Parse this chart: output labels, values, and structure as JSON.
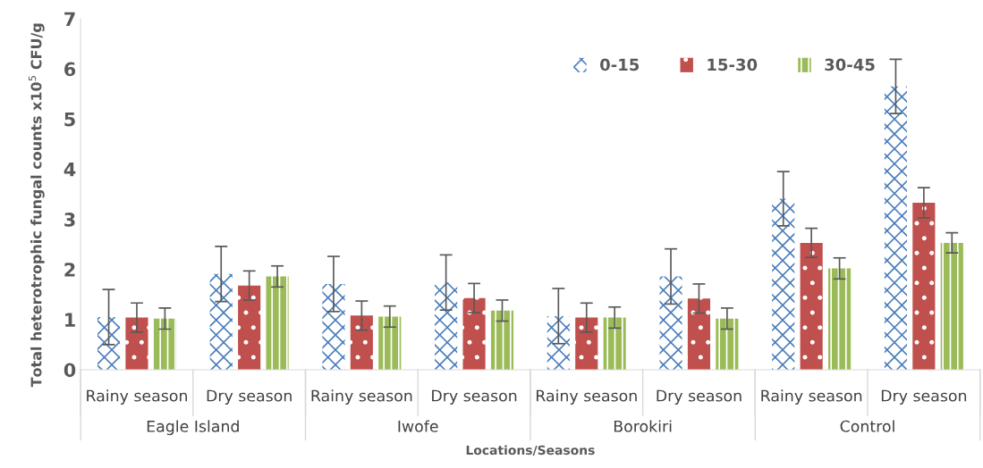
{
  "chart_data": {
    "type": "bar",
    "ylabel": "Total heterotrophic fungal counts x10$^{5}$ CFU/g",
    "xlabel": "Locations/Seasons",
    "categories": [
      "Rainy season",
      "Dry season",
      "Rainy season",
      "Dry season",
      "Rainy season",
      "Dry season",
      "Rainy season",
      "Dry season"
    ],
    "annotations": [
      "Eagle Island",
      "Iwofe",
      "Borokiri",
      "Control"
    ],
    "series": [
      {
        "name": "0-15",
        "color": "#4a7ebb",
        "values": [
          1.05,
          1.91,
          1.71,
          1.74,
          1.07,
          1.86,
          3.41,
          5.65
        ],
        "errors": [
          0.55,
          0.55,
          0.55,
          0.55,
          0.55,
          0.55,
          0.54,
          0.54
        ]
      },
      {
        "name": "15-30",
        "color": "#c0504d",
        "values": [
          1.04,
          1.68,
          1.08,
          1.43,
          1.04,
          1.42,
          2.53,
          3.33
        ],
        "errors": [
          0.29,
          0.29,
          0.29,
          0.29,
          0.29,
          0.29,
          0.29,
          0.3
        ]
      },
      {
        "name": "30-45",
        "color": "#9bbb59",
        "values": [
          1.02,
          1.86,
          1.06,
          1.18,
          1.04,
          1.02,
          2.02,
          2.53
        ],
        "errors": [
          0.21,
          0.21,
          0.21,
          0.21,
          0.21,
          0.21,
          0.21,
          0.2
        ]
      }
    ],
    "ylim": [
      0,
      7
    ],
    "yticks": [
      0,
      1,
      2,
      3,
      4,
      5,
      6,
      7
    ],
    "grid": false,
    "legend": "top right"
  }
}
